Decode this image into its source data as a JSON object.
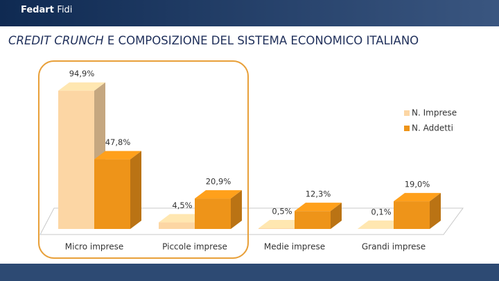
{
  "header": {
    "logo_bold": "Fedart",
    "logo_light": "Fidi"
  },
  "chart_data": {
    "type": "bar3d",
    "title": {
      "emphasis": "CREDIT CRUNCH",
      "rest": "E COMPOSIZIONE DEL SISTEMA ECONOMICO ITALIANO"
    },
    "categories": [
      "Micro imprese",
      "Piccole imprese",
      "Medie imprese",
      "Grandi imprese"
    ],
    "series": [
      {
        "name": "N. Imprese",
        "color": "#fcd6a4",
        "values": [
          94.9,
          4.5,
          0.5,
          0.1
        ],
        "value_labels": [
          "94,9%",
          "4,5%",
          "0,5%",
          "0,1%"
        ]
      },
      {
        "name": "N. Addetti",
        "color": "#ee9419",
        "values": [
          47.8,
          20.9,
          12.3,
          19.0
        ],
        "value_labels": [
          "47,8%",
          "20,9%",
          "12,3%",
          "19,0%"
        ]
      }
    ],
    "legend": "right"
  }
}
